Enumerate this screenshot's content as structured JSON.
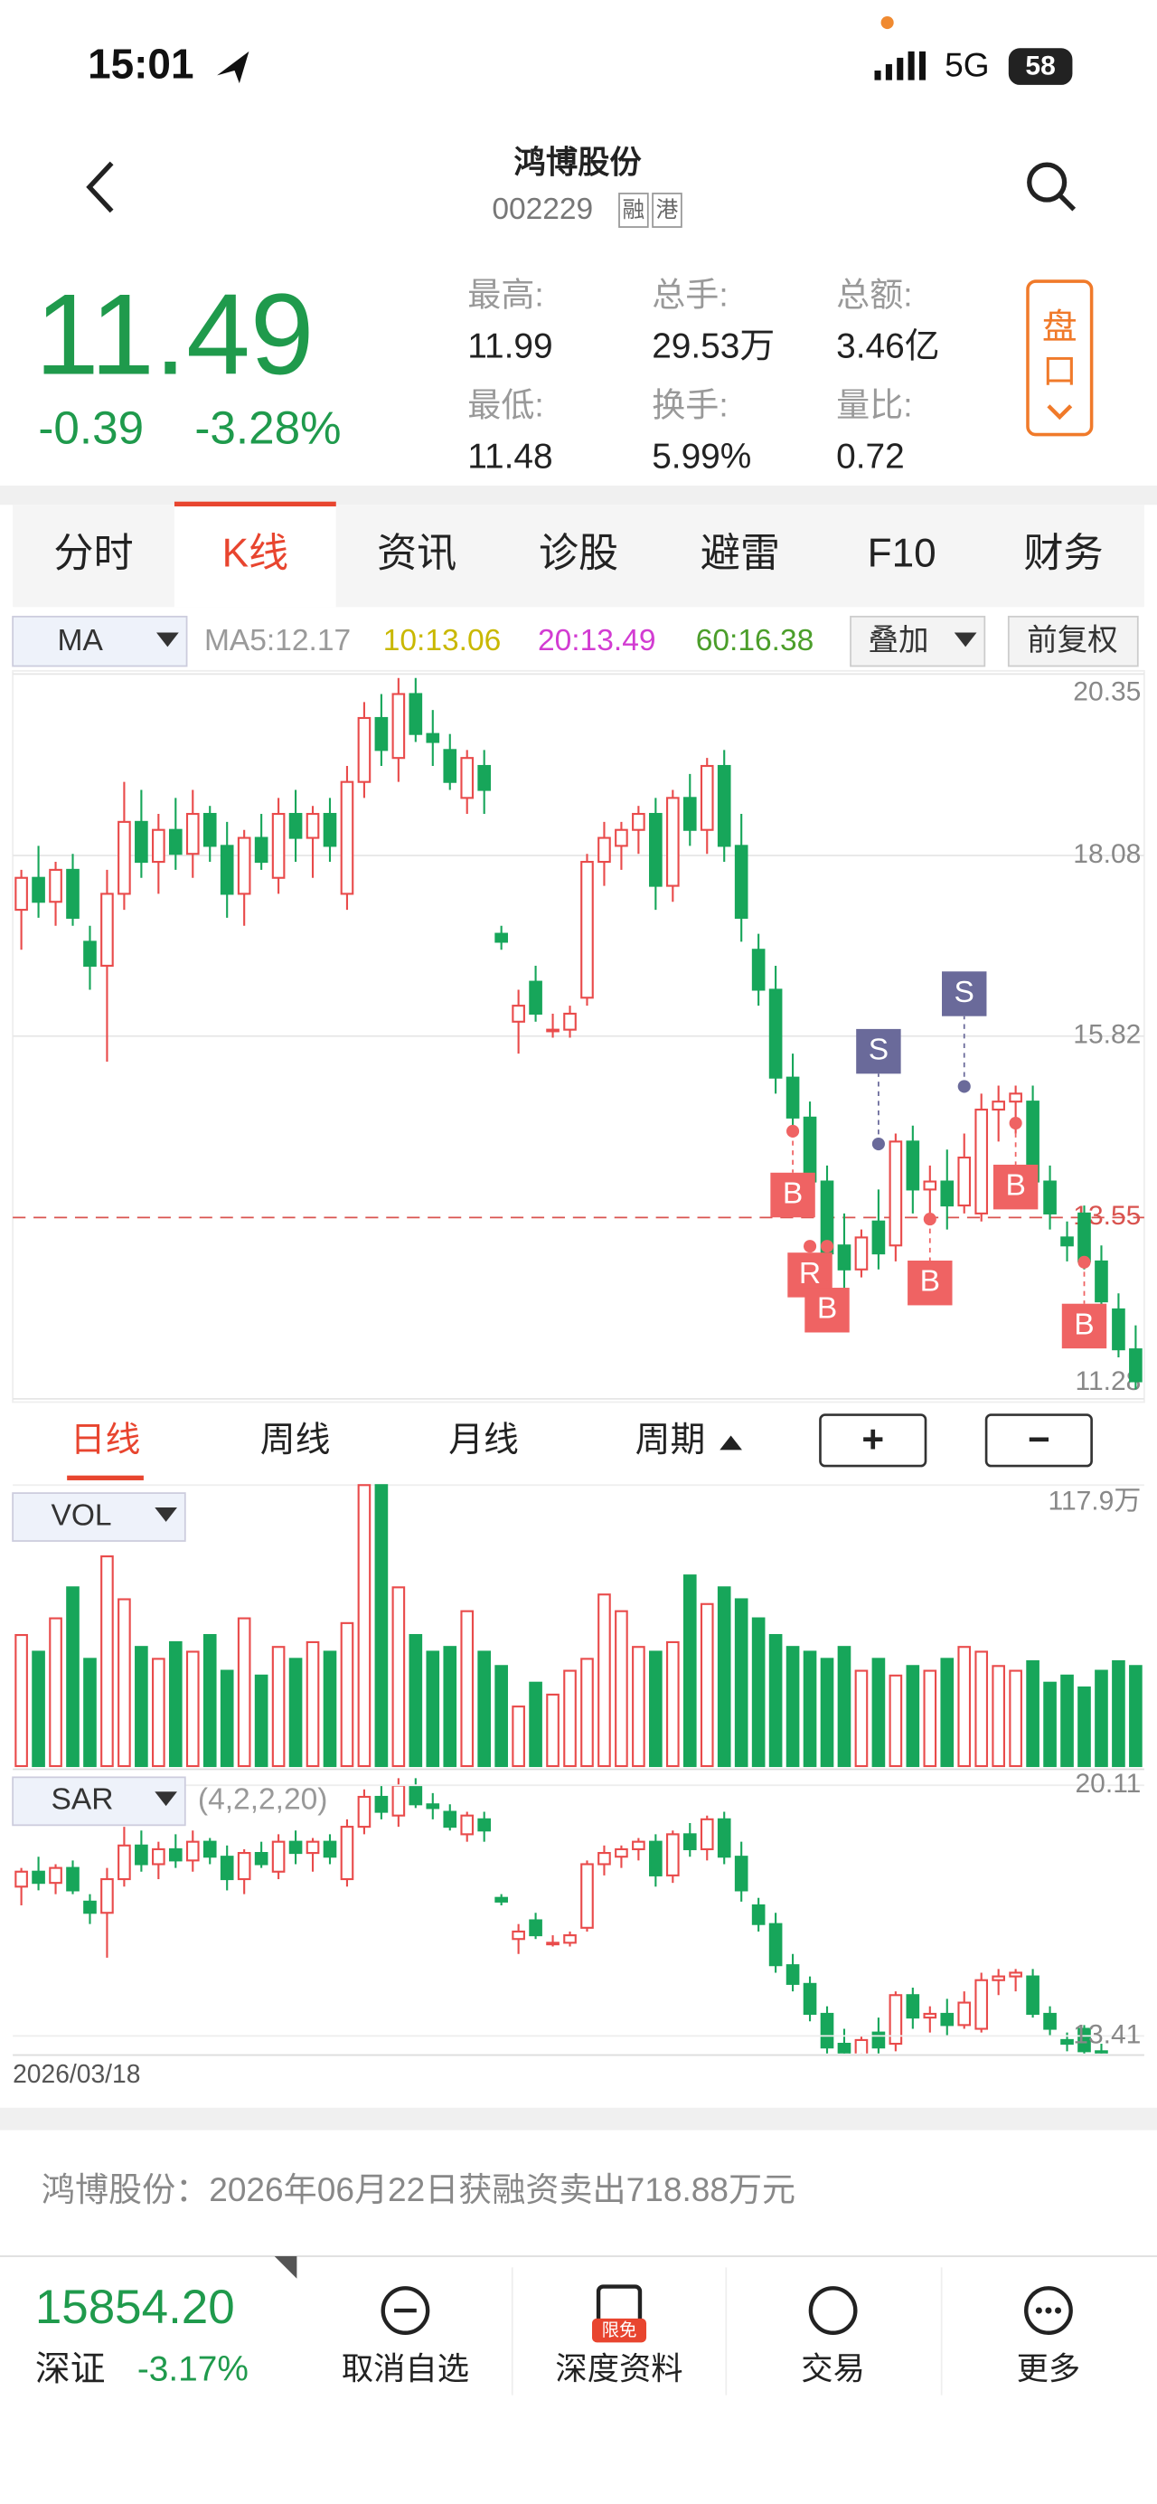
{
  "status_bar": {
    "time": "15:01",
    "network": "5G",
    "battery": "58"
  },
  "header": {
    "title": "鸿博股份",
    "code": "002229",
    "badges": [
      "融",
      "港"
    ]
  },
  "quote": {
    "price": "11.49",
    "change": "-0.39",
    "change_pct": "-3.28%",
    "stats": [
      {
        "label": "最高:",
        "value": "11.99"
      },
      {
        "label": "总手:",
        "value": "29.53万"
      },
      {
        "label": "总额:",
        "value": "3.46亿"
      },
      {
        "label": "最低:",
        "value": "11.48"
      },
      {
        "label": "换手:",
        "value": "5.99%"
      },
      {
        "label": "量比:",
        "value": "0.72"
      }
    ],
    "panel_button": [
      "盘",
      "口"
    ]
  },
  "tabs": [
    "分时",
    "K线",
    "资讯",
    "诊股",
    "避雷",
    "F10",
    "财务"
  ],
  "active_tab": 1,
  "ma_bar": {
    "selector": "MA",
    "items": [
      {
        "label": "MA5:",
        "value": "12.17",
        "color": "#9a9a9a"
      },
      {
        "label": "10:",
        "value": "13.06",
        "color": "#c9b800"
      },
      {
        "label": "20:",
        "value": "13.49",
        "color": "#d23cd2"
      },
      {
        "label": "60:",
        "value": "16.38",
        "color": "#4b9e2a"
      }
    ],
    "overlay": "叠加",
    "adjust": "前复权"
  },
  "chart_data": [
    {
      "type": "candlestick",
      "up_color": "#e94b4b",
      "down_color": "#17a65a",
      "ylim": [
        11.28,
        20.35
      ],
      "yticks": [
        20.35,
        18.08,
        15.82,
        11.28
      ],
      "price_line": 13.55,
      "open": [
        17.4,
        17.8,
        17.5,
        17.9,
        17.0,
        16.7,
        17.6,
        18.5,
        18.0,
        18.4,
        18.1,
        18.6,
        18.2,
        17.6,
        18.3,
        17.8,
        18.6,
        18.3,
        18.6,
        17.6,
        19.0,
        19.8,
        19.3,
        20.1,
        19.6,
        19.4,
        18.8,
        19.2,
        17.1,
        16.0,
        16.5,
        15.9,
        15.9,
        16.3,
        18.0,
        18.2,
        18.4,
        18.6,
        17.7,
        18.8,
        18.4,
        19.2,
        18.2,
        16.9,
        16.4,
        15.3,
        14.8,
        14.0,
        13.2,
        12.9,
        13.5,
        13.2,
        14.5,
        13.9,
        14.0,
        13.7,
        13.6,
        14.9,
        15.0,
        15.0,
        14.0,
        13.3,
        13.6,
        13.0,
        12.4,
        11.9
      ],
      "high": [
        17.9,
        18.2,
        18.0,
        18.1,
        17.2,
        17.9,
        19.0,
        18.9,
        18.6,
        18.8,
        18.9,
        18.7,
        18.5,
        18.4,
        18.6,
        18.8,
        18.9,
        18.7,
        18.8,
        19.2,
        20.0,
        20.1,
        20.3,
        20.3,
        19.9,
        19.6,
        19.4,
        19.4,
        17.2,
        16.4,
        16.7,
        16.1,
        16.2,
        18.1,
        18.5,
        18.5,
        18.7,
        18.8,
        18.9,
        19.1,
        19.3,
        19.4,
        18.6,
        17.1,
        16.7,
        15.6,
        15.0,
        14.2,
        13.6,
        13.4,
        13.9,
        14.6,
        14.7,
        14.2,
        14.4,
        14.6,
        15.1,
        15.2,
        15.2,
        15.2,
        14.2,
        13.5,
        13.7,
        13.2,
        12.6,
        12.2
      ],
      "low": [
        16.9,
        17.3,
        17.2,
        17.2,
        16.4,
        15.5,
        17.4,
        17.8,
        17.6,
        17.9,
        17.8,
        18.0,
        17.3,
        17.2,
        17.9,
        17.6,
        18.0,
        17.8,
        18.0,
        17.4,
        18.8,
        19.2,
        19.0,
        19.5,
        19.2,
        18.9,
        18.6,
        18.6,
        16.9,
        15.6,
        16.0,
        15.8,
        15.8,
        16.2,
        17.7,
        17.9,
        18.1,
        17.4,
        17.5,
        18.2,
        18.1,
        18.0,
        17.0,
        16.2,
        15.1,
        14.6,
        13.8,
        12.9,
        12.6,
        12.8,
        12.9,
        13.0,
        13.6,
        13.5,
        13.4,
        13.6,
        13.5,
        14.5,
        14.6,
        13.9,
        13.4,
        13.0,
        12.9,
        12.3,
        11.8,
        11.4
      ],
      "close": [
        17.8,
        17.5,
        17.9,
        17.3,
        16.7,
        17.6,
        18.5,
        18.0,
        18.4,
        18.1,
        18.6,
        18.2,
        17.6,
        18.3,
        18.0,
        18.6,
        18.3,
        18.6,
        18.2,
        19.0,
        19.8,
        19.4,
        20.1,
        19.6,
        19.5,
        19.0,
        19.3,
        18.9,
        17.0,
        16.2,
        16.1,
        15.9,
        16.1,
        18.0,
        18.3,
        18.4,
        18.6,
        17.7,
        18.8,
        18.4,
        19.2,
        18.2,
        17.3,
        16.4,
        15.3,
        14.8,
        14.0,
        13.1,
        12.9,
        13.3,
        13.1,
        14.5,
        13.9,
        14.0,
        13.7,
        14.3,
        14.9,
        15.0,
        15.1,
        14.0,
        13.6,
        13.2,
        13.0,
        12.5,
        11.9,
        11.5
      ],
      "signals": [
        {
          "label": "B",
          "index": 45,
          "price": 14.63
        },
        {
          "label": "R",
          "index": 46,
          "price": 13.19
        },
        {
          "label": "B",
          "index": 47,
          "price": 13.19
        },
        {
          "label": "S",
          "index": 50,
          "price": 14.47
        },
        {
          "label": "B",
          "index": 53,
          "price": 13.53
        },
        {
          "label": "S",
          "index": 55,
          "price": 15.19
        },
        {
          "label": "B",
          "index": 58,
          "price": 14.73
        },
        {
          "label": "B",
          "index": 62,
          "price": 12.99
        }
      ]
    },
    {
      "type": "bar",
      "selector": "VOL",
      "ylim": [
        0,
        117.9
      ],
      "yticks": [
        {
          "value": 117.9,
          "label": "117.9万"
        }
      ],
      "values": [
        55,
        48,
        62,
        75,
        45,
        88,
        70,
        50,
        45,
        52,
        48,
        55,
        40,
        62,
        38,
        50,
        45,
        52,
        48,
        60,
        117.9,
        117.9,
        75,
        55,
        48,
        50,
        65,
        48,
        42,
        25,
        35,
        30,
        40,
        45,
        72,
        65,
        50,
        48,
        52,
        80,
        68,
        75,
        70,
        62,
        55,
        50,
        48,
        45,
        50,
        40,
        45,
        38,
        42,
        40,
        45,
        50,
        48,
        42,
        40,
        44,
        35,
        38,
        33,
        40,
        44,
        42
      ]
    },
    {
      "type": "sar",
      "selector": "SAR",
      "params": "(4,2,2,20)",
      "ylim": [
        13.41,
        20.11
      ],
      "yticks": [
        20.11,
        13.41
      ],
      "start_date": "2026/03/18"
    }
  ],
  "periods": {
    "items": [
      "日线",
      "周线",
      "月线",
      "周期"
    ],
    "active": 0,
    "zoom": [
      "+",
      "−"
    ]
  },
  "news": "鸿博股份：2026年06月22日获融资卖出718.88万元",
  "footer": {
    "index_value": "15854.20",
    "index_name": "深证",
    "index_change": "-3.17%",
    "actions": [
      {
        "label": "取消自选"
      },
      {
        "label": "深度资料",
        "badge": "限免"
      },
      {
        "label": "交易"
      },
      {
        "label": "更多"
      }
    ]
  }
}
